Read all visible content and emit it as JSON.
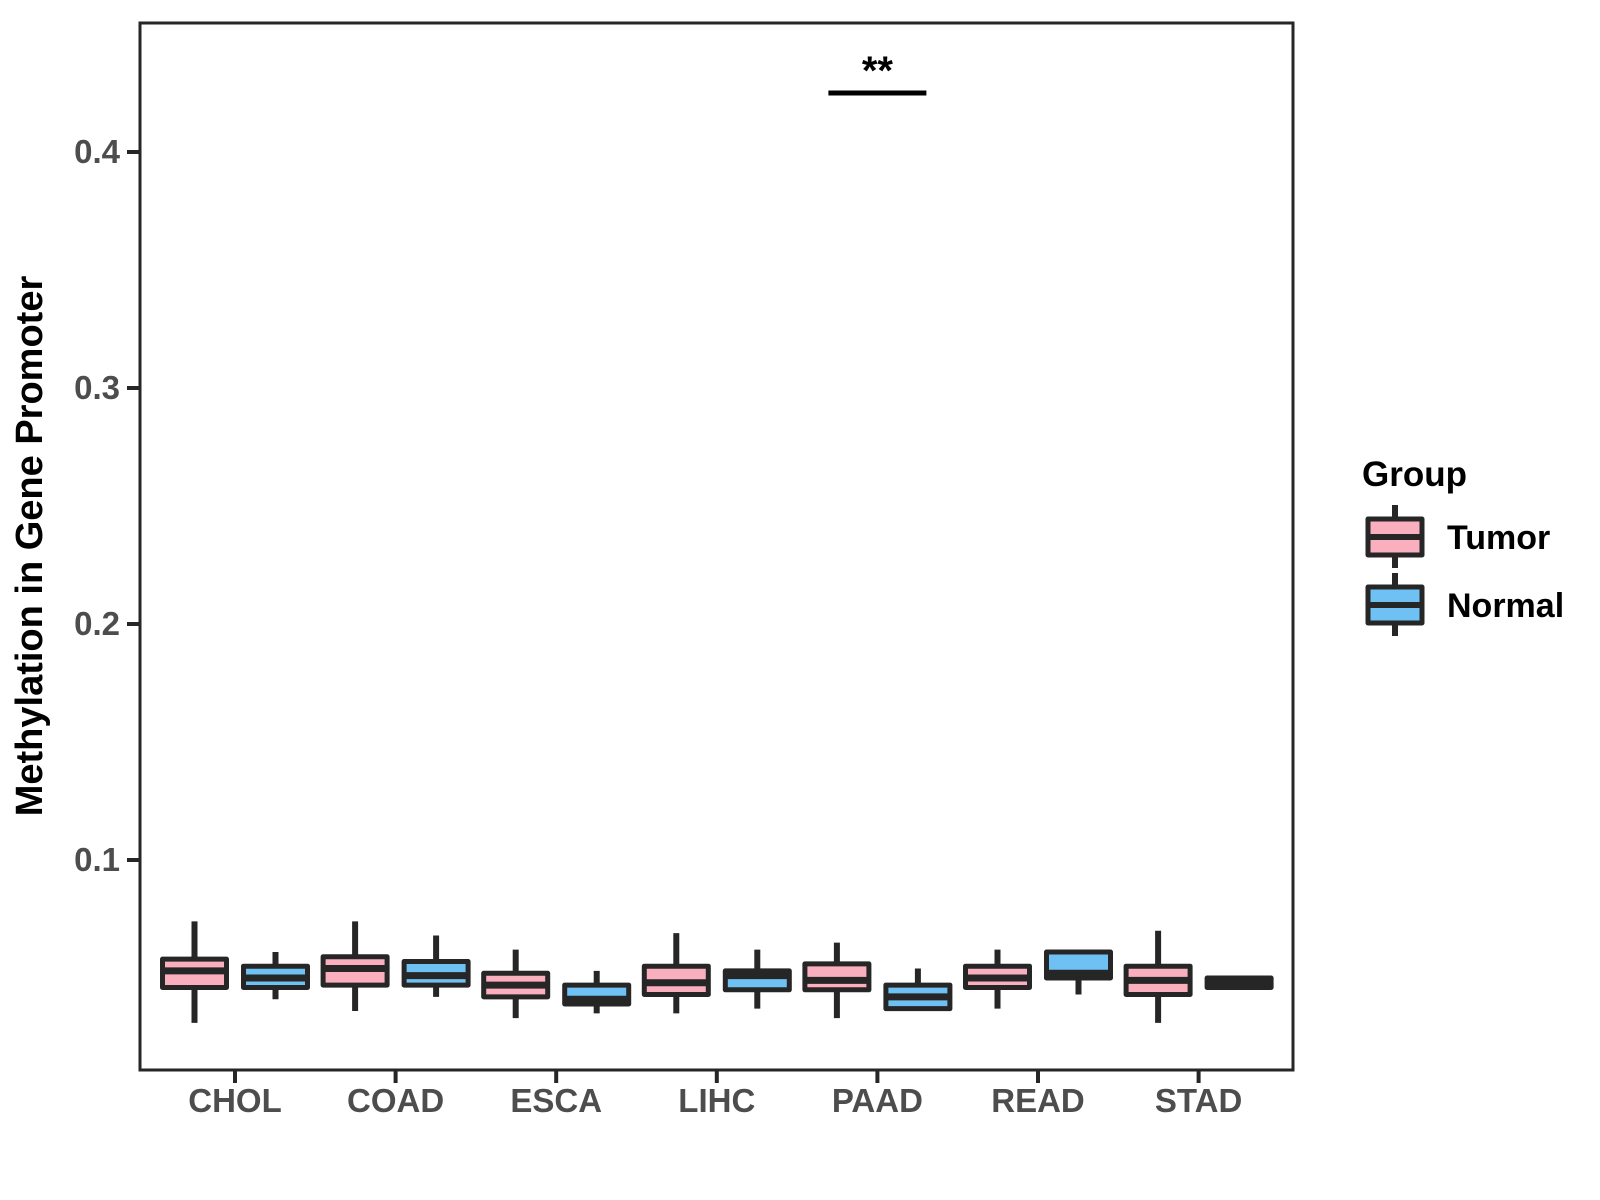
{
  "chart_data": {
    "type": "boxplot",
    "title": "",
    "xlabel": "",
    "ylabel": "Methylation in Gene Promoter",
    "categories": [
      "CHOL",
      "COAD",
      "ESCA",
      "LIHC",
      "PAAD",
      "READ",
      "STAD"
    ],
    "groups": [
      {
        "name": "Tumor",
        "color": "#FAAFBF"
      },
      {
        "name": "Normal",
        "color": "#6EC1F2"
      }
    ],
    "legend": {
      "title": "Group",
      "position": "right"
    },
    "ylim": [
      0.011,
      0.455
    ],
    "yticks": [
      0.1,
      0.2,
      0.3,
      0.4
    ],
    "ytick_labels": [
      "0.1",
      "0.2",
      "0.3",
      "0.4"
    ],
    "grid": "off",
    "series": [
      {
        "name": "Tumor",
        "color": "#FAAFBF",
        "stats": [
          {
            "category": "CHOL",
            "low": 0.031,
            "q1": 0.046,
            "median": 0.053,
            "q3": 0.058,
            "high": 0.074
          },
          {
            "category": "COAD",
            "low": 0.036,
            "q1": 0.047,
            "median": 0.054,
            "q3": 0.059,
            "high": 0.074
          },
          {
            "category": "ESCA",
            "low": 0.033,
            "q1": 0.042,
            "median": 0.047,
            "q3": 0.052,
            "high": 0.062
          },
          {
            "category": "LIHC",
            "low": 0.035,
            "q1": 0.043,
            "median": 0.048,
            "q3": 0.055,
            "high": 0.069
          },
          {
            "category": "PAAD",
            "low": 0.033,
            "q1": 0.045,
            "median": 0.049,
            "q3": 0.056,
            "high": 0.065
          },
          {
            "category": "READ",
            "low": 0.037,
            "q1": 0.046,
            "median": 0.05,
            "q3": 0.055,
            "high": 0.062
          },
          {
            "category": "STAD",
            "low": 0.031,
            "q1": 0.043,
            "median": 0.049,
            "q3": 0.055,
            "high": 0.07
          }
        ]
      },
      {
        "name": "Normal",
        "color": "#6EC1F2",
        "stats": [
          {
            "category": "CHOL",
            "low": 0.041,
            "q1": 0.046,
            "median": 0.05,
            "q3": 0.055,
            "high": 0.061
          },
          {
            "category": "COAD",
            "low": 0.042,
            "q1": 0.047,
            "median": 0.051,
            "q3": 0.057,
            "high": 0.068
          },
          {
            "category": "ESCA",
            "low": 0.035,
            "q1": 0.039,
            "median": 0.041,
            "q3": 0.047,
            "high": 0.053
          },
          {
            "category": "LIHC",
            "low": 0.037,
            "q1": 0.045,
            "median": 0.051,
            "q3": 0.053,
            "high": 0.062
          },
          {
            "category": "PAAD",
            "low": 0.036,
            "q1": 0.037,
            "median": 0.042,
            "q3": 0.047,
            "high": 0.054
          },
          {
            "category": "READ",
            "low": 0.043,
            "q1": 0.05,
            "median": 0.052,
            "q3": 0.061,
            "high": 0.062
          },
          {
            "category": "STAD",
            "low": 0.045,
            "q1": 0.046,
            "median": 0.048,
            "q3": 0.05,
            "high": 0.051
          }
        ]
      }
    ],
    "annotations": [
      {
        "type": "significance",
        "category": "PAAD",
        "label": "**",
        "y": 0.425
      }
    ],
    "style": {
      "box_border_color": "#262626",
      "axis_color": "#262626",
      "tick_label_color": "#4d4d4d",
      "background": "#ffffff"
    }
  }
}
